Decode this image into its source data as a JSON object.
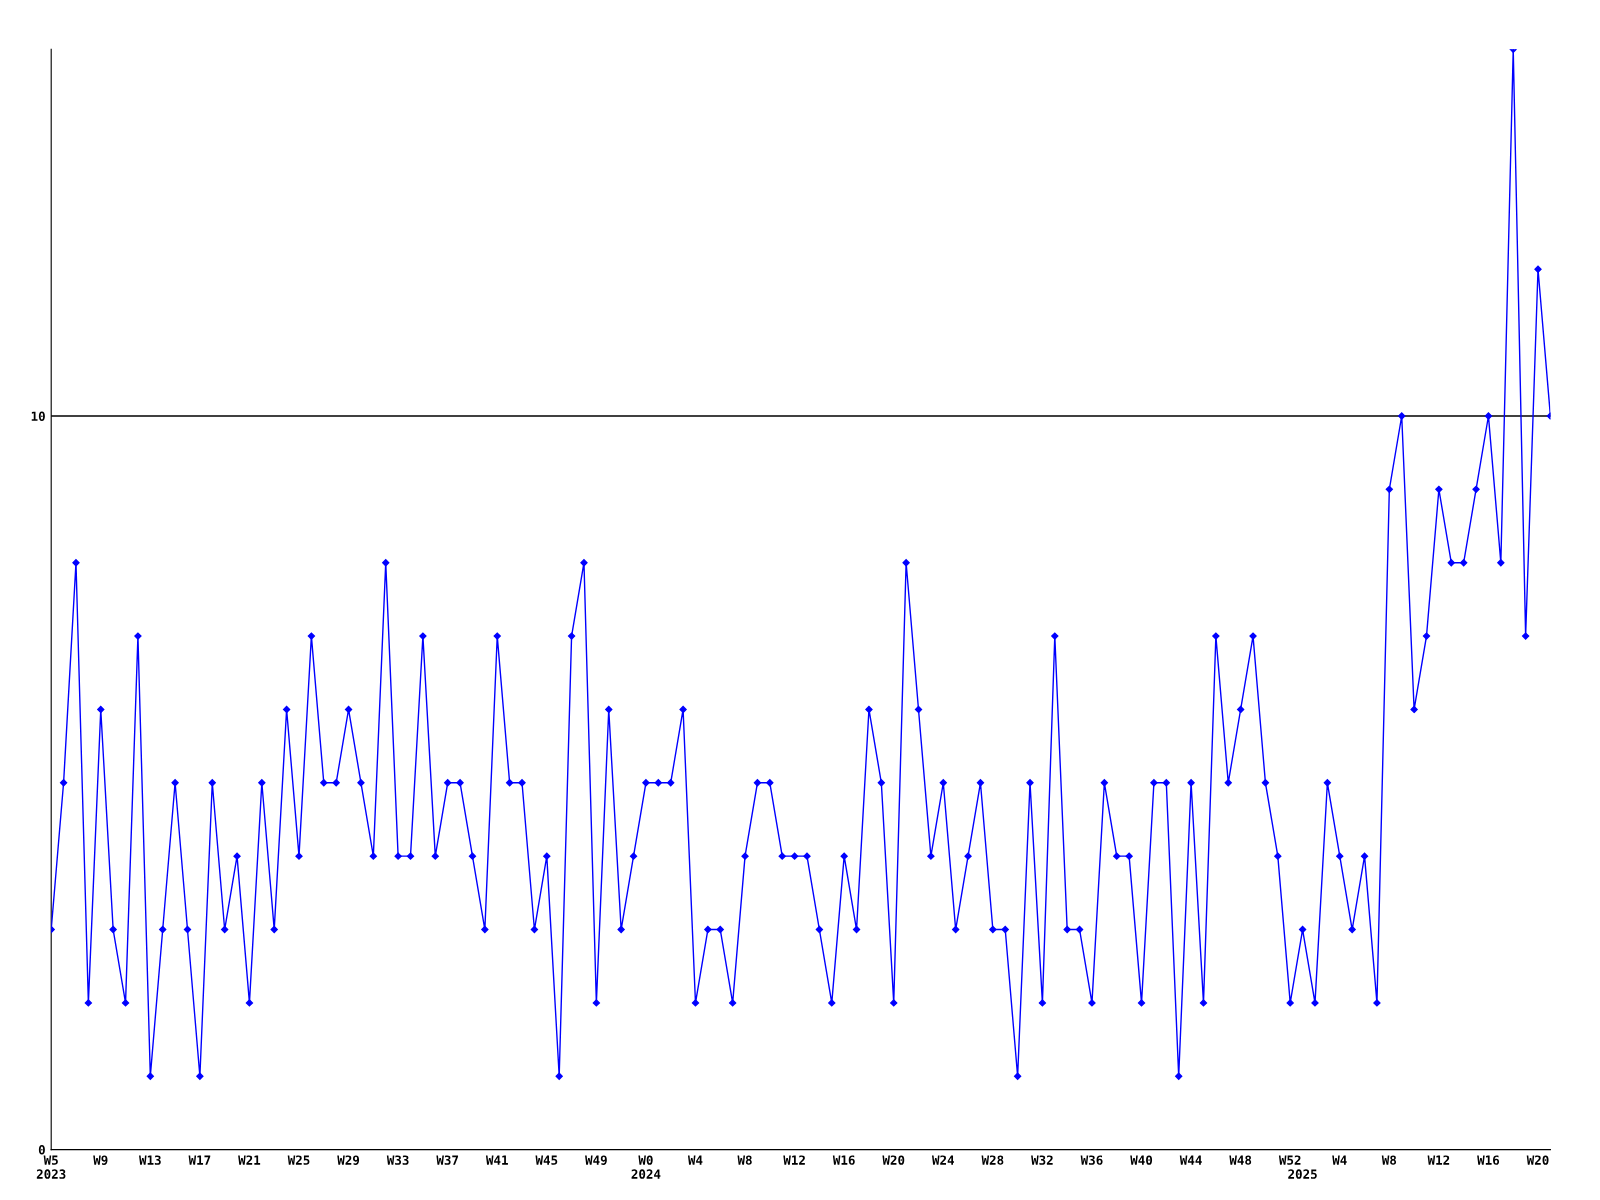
{
  "chart_data": {
    "type": "line",
    "categories": [
      "W5\n2023",
      null,
      null,
      null,
      "W9",
      null,
      null,
      null,
      "W13",
      null,
      null,
      null,
      "W17",
      null,
      null,
      null,
      "W21",
      null,
      null,
      null,
      "W25",
      null,
      null,
      null,
      "W29",
      null,
      null,
      null,
      "W33",
      null,
      null,
      null,
      "W37",
      null,
      null,
      null,
      "W41",
      null,
      null,
      null,
      "W45",
      null,
      null,
      null,
      "W49",
      null,
      null,
      null,
      "W0\n2024",
      null,
      null,
      null,
      "W4",
      null,
      null,
      null,
      "W8",
      null,
      null,
      null,
      "W12",
      null,
      null,
      null,
      "W16",
      null,
      null,
      null,
      "W20",
      null,
      null,
      null,
      "W24",
      null,
      null,
      null,
      "W28",
      null,
      null,
      null,
      "W32",
      null,
      null,
      null,
      "W36",
      null,
      null,
      null,
      "W40",
      null,
      null,
      null,
      "W44",
      null,
      null,
      null,
      "W48",
      null,
      null,
      null,
      "W52",
      "\n2025",
      null,
      null,
      "W4",
      null,
      null,
      null,
      "W8",
      null,
      null,
      null,
      "W12",
      null,
      null,
      null,
      "W16",
      null,
      null,
      null,
      "W20",
      null
    ],
    "series": [
      {
        "color": "#0000ff",
        "values": [
          3,
          5,
          8,
          2,
          6,
          3,
          2,
          7,
          1,
          3,
          5,
          3,
          1,
          5,
          3,
          4,
          2,
          5,
          3,
          6,
          4,
          7,
          5,
          5,
          6,
          5,
          4,
          8,
          4,
          4,
          7,
          4,
          5,
          5,
          4,
          3,
          7,
          5,
          5,
          3,
          4,
          1,
          7,
          8,
          2,
          6,
          3,
          4,
          5,
          5,
          5,
          6,
          2,
          3,
          3,
          2,
          4,
          5,
          5,
          4,
          4,
          4,
          3,
          2,
          4,
          3,
          6,
          5,
          2,
          8,
          6,
          4,
          5,
          3,
          4,
          5,
          3,
          3,
          1,
          5,
          2,
          7,
          3,
          3,
          2,
          5,
          4,
          4,
          2,
          5,
          5,
          1,
          5,
          2,
          7,
          5,
          6,
          7,
          5,
          4,
          2,
          3,
          2,
          5,
          4,
          3,
          4,
          2,
          9,
          10,
          6,
          7,
          9,
          8,
          8,
          9,
          10,
          8,
          15,
          7,
          12,
          10
        ]
      }
    ],
    "ylim": [
      0,
      15
    ],
    "yticks": [
      0,
      10
    ],
    "grid": "y",
    "marker": "diamond",
    "line_style": "solid"
  }
}
